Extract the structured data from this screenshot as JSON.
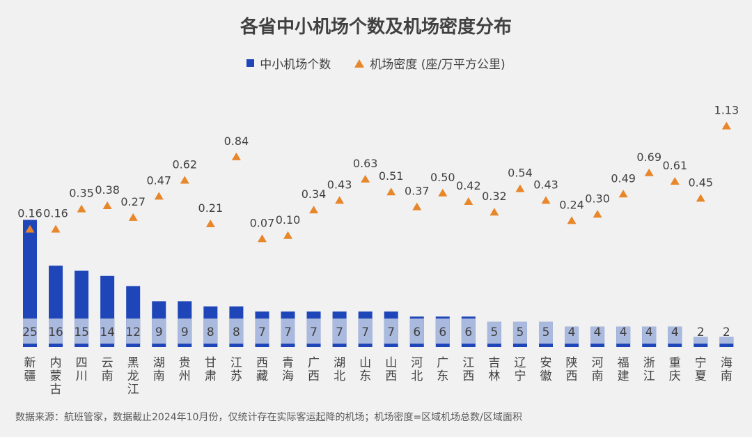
{
  "chart_data": {
    "type": "bar",
    "title": "各省中小机场个数及机场密度分布",
    "categories": [
      "新疆",
      "内蒙古",
      "四川",
      "云南",
      "黑龙江",
      "湖南",
      "贵州",
      "甘肃",
      "江苏",
      "西藏",
      "青海",
      "广西",
      "湖北",
      "山东",
      "山西",
      "河北",
      "广东",
      "江西",
      "吉林",
      "辽宁",
      "安徽",
      "陕西",
      "河南",
      "福建",
      "浙江",
      "重庆",
      "宁夏",
      "海南"
    ],
    "series": [
      {
        "name": "中小机场个数",
        "kind": "bar",
        "values": [
          25,
          16,
          15,
          14,
          12,
          9,
          9,
          8,
          8,
          7,
          7,
          7,
          7,
          7,
          7,
          6,
          6,
          6,
          5,
          5,
          5,
          4,
          4,
          4,
          4,
          4,
          2,
          2
        ],
        "labels": [
          "25",
          "16",
          "15",
          "14",
          "12",
          "9",
          "9",
          "8",
          "8",
          "7",
          "7",
          "7",
          "7",
          "7",
          "7",
          "6",
          "6",
          "6",
          "5",
          "5",
          "5",
          "4",
          "4",
          "4",
          "4",
          "4",
          "2",
          "2"
        ],
        "color": "#1f46b8"
      },
      {
        "name": "机场密度 (座/万平方公里)",
        "kind": "marker",
        "values": [
          0.16,
          0.16,
          0.35,
          0.38,
          0.27,
          0.47,
          0.62,
          0.21,
          0.84,
          0.07,
          0.1,
          0.34,
          0.43,
          0.63,
          0.51,
          0.37,
          0.5,
          0.42,
          0.32,
          0.54,
          0.43,
          0.24,
          0.3,
          0.49,
          0.69,
          0.61,
          0.45,
          1.13
        ],
        "labels": [
          "0.16",
          "0.16",
          "0.35",
          "0.38",
          "0.27",
          "0.47",
          "0.62",
          "0.21",
          "0.84",
          "0.07",
          "0.10",
          "0.34",
          "0.43",
          "0.63",
          "0.51",
          "0.37",
          "0.50",
          "0.42",
          "0.32",
          "0.54",
          "0.43",
          "0.24",
          "0.30",
          "0.49",
          "0.69",
          "0.61",
          "0.45",
          "1.13"
        ],
        "color": "#e8862a"
      }
    ],
    "legend_position": "top-center",
    "grid": false
  },
  "colors": {
    "bar": "#1f46b8",
    "bar_band": "#aab9de",
    "marker": "#e8862a",
    "text": "#404040"
  },
  "source_note": "数据来源：航班管家，数据截止2024年10月份，仅统计存在实际客运起降的机场；机场密度=区域机场总数/区域面积"
}
